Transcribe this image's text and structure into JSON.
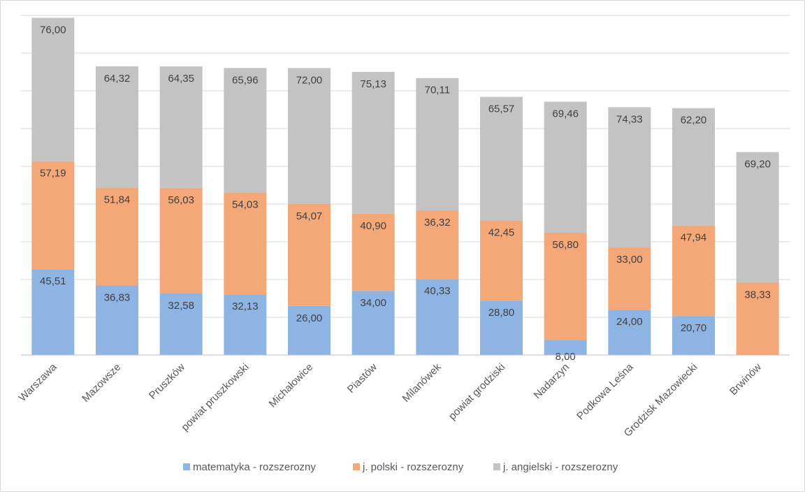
{
  "chart_data": {
    "type": "bar",
    "stacked": true,
    "title": "",
    "xlabel": "",
    "ylabel": "",
    "ylim": [
      0,
      180
    ],
    "grid": true,
    "legend_position": "bottom",
    "categories": [
      "Warszawa",
      "Mazowsze",
      "Pruszków",
      "powiat pruszkowski",
      "Michałowice",
      "Piastów",
      "Milanówek",
      "powiat grodziski",
      "Nadarzyn",
      "Podkowa Leśna",
      "Grodzisk Mazowiecki",
      "Brwinów"
    ],
    "series": [
      {
        "name": "matematyka - rozszerozny",
        "color": "#8db4e2",
        "values": [
          45.51,
          36.83,
          32.58,
          32.13,
          26.0,
          34.0,
          40.33,
          28.8,
          8.0,
          24.0,
          20.7,
          0
        ],
        "labels": [
          "45,51",
          "36,83",
          "32,58",
          "32,13",
          "26,00",
          "34,00",
          "40,33",
          "28,80",
          "8,00",
          "24,00",
          "20,70",
          ""
        ]
      },
      {
        "name": "j. polski - rozszerozny",
        "color": "#f4a777",
        "values": [
          57.19,
          51.84,
          56.03,
          54.03,
          54.07,
          40.9,
          36.32,
          42.45,
          56.8,
          33.0,
          47.94,
          38.33
        ],
        "labels": [
          "57,19",
          "51,84",
          "56,03",
          "54,03",
          "54,07",
          "40,90",
          "36,32",
          "42,45",
          "56,80",
          "33,00",
          "47,94",
          "38,33"
        ]
      },
      {
        "name": "j. angielski - rozszerozny",
        "color": "#c3c3c3",
        "values": [
          76.0,
          64.32,
          64.35,
          65.96,
          72.0,
          75.13,
          70.11,
          65.57,
          69.46,
          74.33,
          62.2,
          69.2
        ],
        "labels": [
          "76,00",
          "64,32",
          "64,35",
          "65,96",
          "72,00",
          "75,13",
          "70,11",
          "65,57",
          "69,46",
          "74,33",
          "62,20",
          "69,20"
        ]
      }
    ]
  }
}
